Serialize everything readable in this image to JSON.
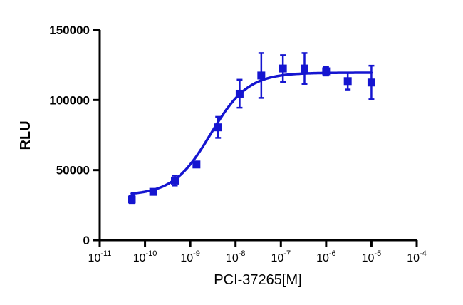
{
  "chart_data": {
    "type": "scatter",
    "title": "",
    "xlabel": "PCI-37265[M]",
    "ylabel": "RLU",
    "x_scale": "log",
    "xlim": [
      1e-11,
      0.0001
    ],
    "ylim": [
      0,
      150000
    ],
    "x_ticks": [
      {
        "base": "10",
        "exp": "-11"
      },
      {
        "base": "10",
        "exp": "-10"
      },
      {
        "base": "10",
        "exp": "-9"
      },
      {
        "base": "10",
        "exp": "-8"
      },
      {
        "base": "10",
        "exp": "-7"
      },
      {
        "base": "10",
        "exp": "-6"
      },
      {
        "base": "10",
        "exp": "-5"
      },
      {
        "base": "10",
        "exp": "-4"
      }
    ],
    "y_ticks": [
      "0",
      "50000",
      "100000",
      "150000"
    ],
    "grid": false,
    "color": "#1515d0",
    "series": [
      {
        "points": [
          {
            "x": 5.1e-11,
            "y": 29000,
            "err": 2500
          },
          {
            "x": 1.52e-10,
            "y": 34500,
            "err": 1500
          },
          {
            "x": 4.57e-10,
            "y": 42500,
            "err": 3500
          },
          {
            "x": 1.37e-09,
            "y": 54000,
            "err": 1500
          },
          {
            "x": 4.12e-09,
            "y": 80500,
            "err": 7500
          },
          {
            "x": 1.23e-08,
            "y": 104500,
            "err": 10000
          },
          {
            "x": 3.7e-08,
            "y": 117500,
            "err": 16000
          },
          {
            "x": 1.11e-07,
            "y": 122500,
            "err": 9500
          },
          {
            "x": 3.33e-07,
            "y": 122500,
            "err": 11000
          },
          {
            "x": 1e-06,
            "y": 120500,
            "err": 3000
          },
          {
            "x": 3e-06,
            "y": 113500,
            "err": 6000
          },
          {
            "x": 1e-05,
            "y": 112500,
            "err": 12000
          }
        ],
        "fit": {
          "bottom": 32000,
          "top": 119500,
          "logEC50": -8.55,
          "hill": 1.05
        }
      }
    ]
  }
}
